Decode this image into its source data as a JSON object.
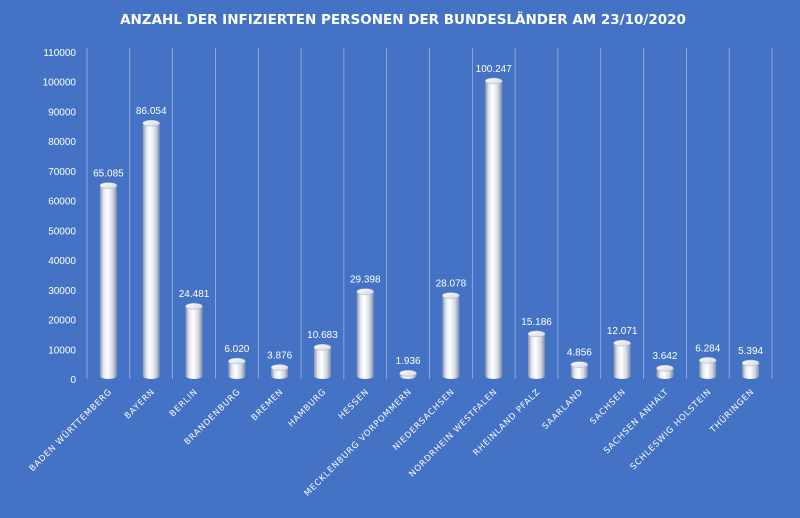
{
  "chart_data": {
    "type": "bar",
    "title": "ANZAHL DER INFIZIERTEN PERSONEN DER BUNDESLÄNDER AM 23/10/2020",
    "xlabel": "",
    "ylabel": "",
    "ylim": [
      0,
      110000
    ],
    "yticks": [
      0,
      10000,
      20000,
      30000,
      40000,
      50000,
      60000,
      70000,
      80000,
      90000,
      100000,
      110000
    ],
    "categories": [
      "BADEN WÜRTTEMBERG",
      "BAYERN",
      "BERLIN",
      "BRANDENBURG",
      "BREMEN",
      "HAMBURG",
      "HESSEN",
      "MECKLENBURG VORPOMMERN",
      "NIEDERSACHSEN",
      "NORDRHEIN WESTFALEN",
      "RHEINLAND PFALZ",
      "SAARLAND",
      "SACHSEN",
      "SACHSEN ANHALT",
      "SCHLESWIG HOLSTEIN",
      "THÜRINGEN"
    ],
    "values": [
      65085,
      86054,
      24481,
      6020,
      3876,
      10683,
      29398,
      1936,
      28078,
      100247,
      15186,
      4856,
      12071,
      3642,
      6284,
      5394
    ],
    "value_labels": [
      "65.085",
      "86.054",
      "24.481",
      "6.020",
      "3.876",
      "10.683",
      "29.398",
      "1.936",
      "28.078",
      "100.247",
      "15.186",
      "4.856",
      "12.071",
      "3.642",
      "6.284",
      "5.394"
    ],
    "grid": "vertical category separators",
    "legend": "none",
    "colors": {
      "background": "#4472c4",
      "bar": "#ffffff",
      "text": "#ffffff"
    }
  }
}
